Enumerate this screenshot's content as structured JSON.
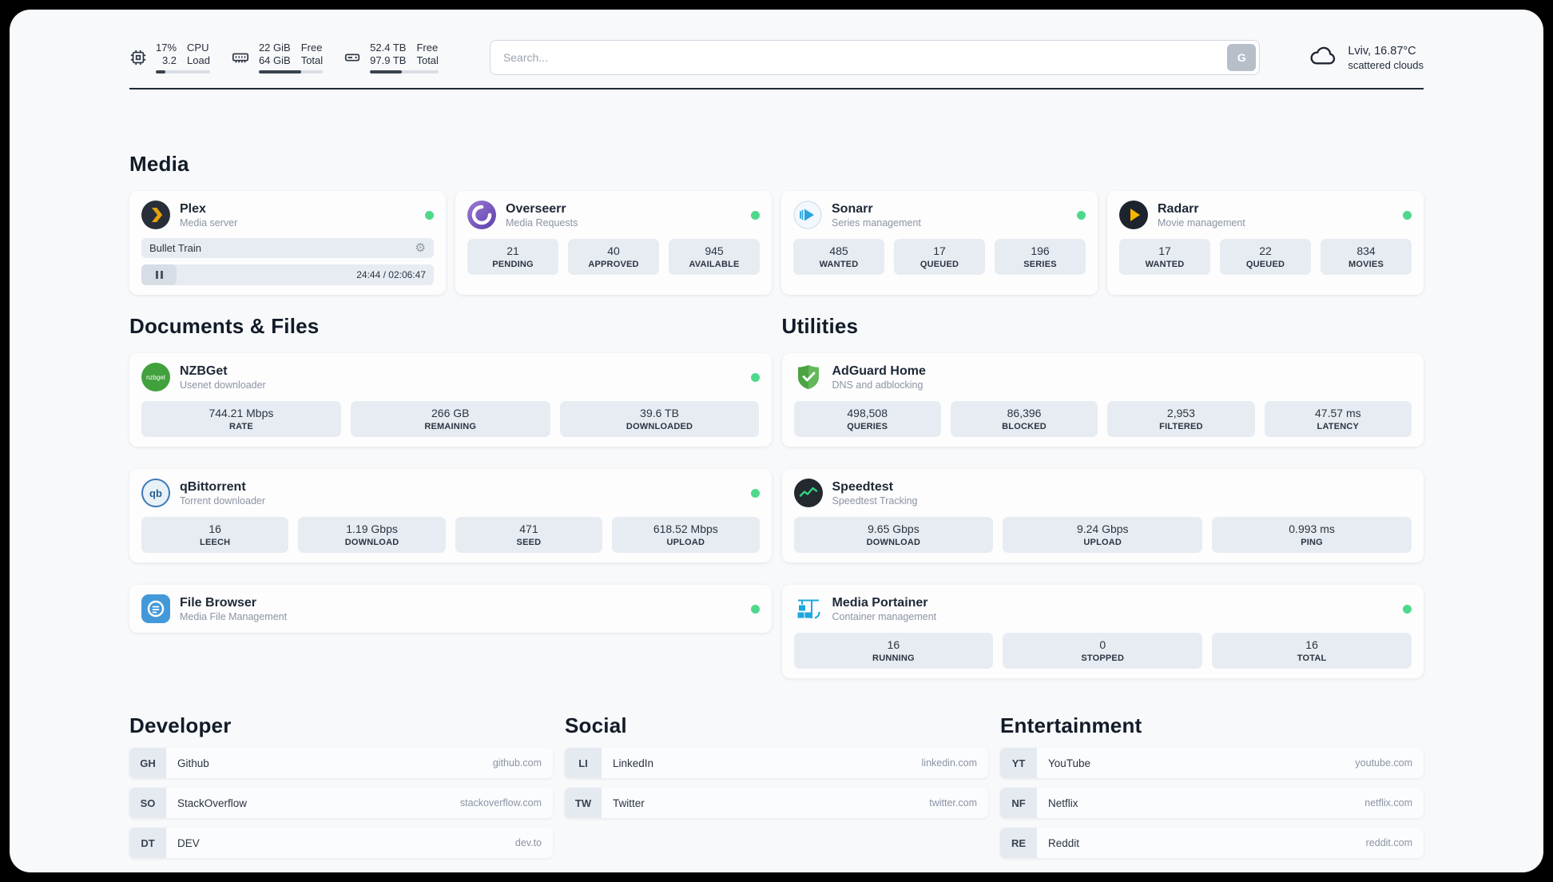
{
  "colors": {
    "status_green": "#4fd88c",
    "panel_bg": "#f7f9fb",
    "stat_bg": "#e7ecf2",
    "bar_track": "#d9dee6",
    "bar_fill": "#39424f"
  },
  "header": {
    "cpu": {
      "values": [
        "17%",
        "3.2"
      ],
      "labels": [
        "CPU",
        "Load"
      ],
      "progress": 17
    },
    "ram": {
      "values": [
        "22 GiB",
        "64 GiB"
      ],
      "labels": [
        "Free",
        "Total"
      ],
      "progress": 66
    },
    "disk": {
      "values": [
        "52.4 TB",
        "97.9 TB"
      ],
      "labels": [
        "Free",
        "Total"
      ],
      "progress": 46
    },
    "search": {
      "placeholder": "Search...",
      "button_label": "G"
    },
    "weather": {
      "location": "Lviv, 16.87°C",
      "condition": "scattered clouds"
    }
  },
  "media": {
    "title": "Media",
    "plex": {
      "name": "Plex",
      "subtitle": "Media server",
      "now_playing": "Bullet Train",
      "time": "24:44 / 02:06:47"
    },
    "cards": [
      {
        "name": "Overseerr",
        "subtitle": "Media Requests",
        "stats": [
          {
            "value": "21",
            "label": "PENDING"
          },
          {
            "value": "40",
            "label": "APPROVED"
          },
          {
            "value": "945",
            "label": "AVAILABLE"
          }
        ]
      },
      {
        "name": "Sonarr",
        "subtitle": "Series management",
        "stats": [
          {
            "value": "485",
            "label": "WANTED"
          },
          {
            "value": "17",
            "label": "QUEUED"
          },
          {
            "value": "196",
            "label": "SERIES"
          }
        ]
      },
      {
        "name": "Radarr",
        "subtitle": "Movie management",
        "stats": [
          {
            "value": "17",
            "label": "WANTED"
          },
          {
            "value": "22",
            "label": "QUEUED"
          },
          {
            "value": "834",
            "label": "MOVIES"
          }
        ]
      }
    ]
  },
  "documents": {
    "title": "Documents & Files",
    "nzbget": {
      "name": "NZBGet",
      "subtitle": "Usenet downloader",
      "stats": [
        {
          "value": "744.21 Mbps",
          "label": "RATE"
        },
        {
          "value": "266 GB",
          "label": "REMAINING"
        },
        {
          "value": "39.6 TB",
          "label": "DOWNLOADED"
        }
      ]
    },
    "qbittorrent": {
      "name": "qBittorrent",
      "subtitle": "Torrent downloader",
      "stats": [
        {
          "value": "16",
          "label": "LEECH"
        },
        {
          "value": "1.19 Gbps",
          "label": "DOWNLOAD"
        },
        {
          "value": "471",
          "label": "SEED"
        },
        {
          "value": "618.52 Mbps",
          "label": "UPLOAD"
        }
      ]
    },
    "filebrowser": {
      "name": "File Browser",
      "subtitle": "Media File Management"
    }
  },
  "utilities": {
    "title": "Utilities",
    "adguard": {
      "name": "AdGuard Home",
      "subtitle": "DNS and adblocking",
      "stats": [
        {
          "value": "498,508",
          "label": "QUERIES"
        },
        {
          "value": "86,396",
          "label": "BLOCKED"
        },
        {
          "value": "2,953",
          "label": "FILTERED"
        },
        {
          "value": "47.57 ms",
          "label": "LATENCY"
        }
      ]
    },
    "speedtest": {
      "name": "Speedtest",
      "subtitle": "Speedtest Tracking",
      "stats": [
        {
          "value": "9.65 Gbps",
          "label": "DOWNLOAD"
        },
        {
          "value": "9.24 Gbps",
          "label": "UPLOAD"
        },
        {
          "value": "0.993 ms",
          "label": "PING"
        }
      ]
    },
    "portainer": {
      "name": "Media Portainer",
      "subtitle": "Container management",
      "stats": [
        {
          "value": "16",
          "label": "RUNNING"
        },
        {
          "value": "0",
          "label": "STOPPED"
        },
        {
          "value": "16",
          "label": "TOTAL"
        }
      ]
    }
  },
  "bookmarks": {
    "developer": {
      "title": "Developer",
      "items": [
        {
          "abbr": "GH",
          "name": "Github",
          "url": "github.com"
        },
        {
          "abbr": "SO",
          "name": "StackOverflow",
          "url": "stackoverflow.com"
        },
        {
          "abbr": "DT",
          "name": "DEV",
          "url": "dev.to"
        }
      ]
    },
    "social": {
      "title": "Social",
      "items": [
        {
          "abbr": "LI",
          "name": "LinkedIn",
          "url": "linkedin.com"
        },
        {
          "abbr": "TW",
          "name": "Twitter",
          "url": "twitter.com"
        }
      ]
    },
    "entertainment": {
      "title": "Entertainment",
      "items": [
        {
          "abbr": "YT",
          "name": "YouTube",
          "url": "youtube.com"
        },
        {
          "abbr": "NF",
          "name": "Netflix",
          "url": "netflix.com"
        },
        {
          "abbr": "RE",
          "name": "Reddit",
          "url": "reddit.com"
        }
      ]
    }
  }
}
